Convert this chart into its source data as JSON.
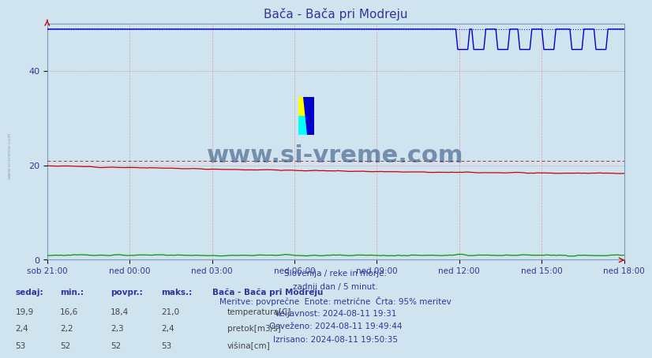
{
  "title": "Bača - Bača pri Modreju",
  "bg_color": "#d0e4f0",
  "plot_bg_color": "#d0e4f0",
  "y_min": 0,
  "y_max": 50,
  "y_ticks": [
    0,
    20,
    40
  ],
  "x_tick_labels": [
    "sob 21:00",
    "ned 00:00",
    "ned 03:00",
    "ned 06:00",
    "ned 09:00",
    "ned 12:00",
    "ned 15:00",
    "ned 18:00"
  ],
  "footer_lines": [
    "Slovenija / reke in morje.",
    "zadnji dan / 5 minut.",
    "Meritve: povprečne  Enote: metrične  Črta: 95% meritev",
    "Veljavnost: 2024-08-11 19:31",
    "Osveženo: 2024-08-11 19:49:44",
    "Izrisano: 2024-08-11 19:50:35"
  ],
  "legend_title": "Bača - Bača pri Modreju",
  "legend_items": [
    {
      "label": "temperatura[C]",
      "color": "#cc0000"
    },
    {
      "label": "pretok[m3/s]",
      "color": "#009900"
    },
    {
      "label": "višina[cm]",
      "color": "#0000cc"
    }
  ],
  "table_headers": [
    "sedaj:",
    "min.:",
    "povpr.:",
    "maks.:"
  ],
  "table_rows": [
    [
      "19,9",
      "16,6",
      "18,4",
      "21,0"
    ],
    [
      "2,4",
      "2,2",
      "2,3",
      "2,4"
    ],
    [
      "53",
      "52",
      "52",
      "53"
    ]
  ],
  "watermark": "www.si-vreme.com",
  "watermark_color": "#1a3a6e",
  "temp_color": "#cc0000",
  "pretok_color": "#009900",
  "visina_color": "#0000cc",
  "hline_red_dotted_value": 21.0,
  "hline_blue_dotted_value": 48.8,
  "grid_v_color": "#dd8888",
  "grid_h_color": "#dd8888",
  "n_points": 289,
  "sidebar_text": "www.si-vreme.com",
  "sidebar_color": "#8899aa"
}
